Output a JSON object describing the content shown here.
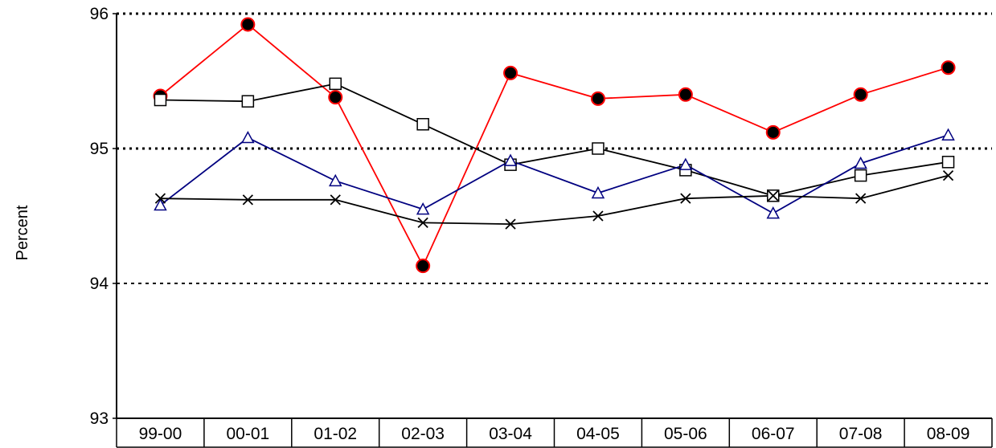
{
  "chart_data": {
    "type": "line",
    "ylabel": "Percent",
    "ylim": [
      93,
      96
    ],
    "yticks": [
      93,
      94,
      95,
      96
    ],
    "yticklabels": [
      "93",
      "94",
      "95",
      "96"
    ],
    "categories": [
      "99-00",
      "00-01",
      "01-02",
      "02-03",
      "03-04",
      "04-05",
      "05-06",
      "06-07",
      "07-08",
      "08-09"
    ],
    "grid": "horizontal dotted at 94, 95, 96",
    "legend": "none",
    "series": [
      {
        "color": "#ff0000",
        "marker": "filled-circle",
        "values": [
          95.39,
          95.92,
          95.38,
          94.13,
          95.56,
          95.37,
          95.4,
          95.12,
          95.4,
          95.6
        ]
      },
      {
        "color": "#000000",
        "marker": "square",
        "values": [
          95.36,
          95.35,
          95.48,
          95.18,
          94.88,
          95.0,
          94.84,
          94.65,
          94.8,
          94.9
        ]
      },
      {
        "color": "#000080",
        "marker": "triangle",
        "values": [
          94.58,
          95.08,
          94.76,
          94.55,
          94.91,
          94.67,
          94.88,
          94.52,
          94.89,
          95.1
        ]
      },
      {
        "color": "#000000",
        "marker": "x",
        "values": [
          94.63,
          94.62,
          94.62,
          94.45,
          94.44,
          94.5,
          94.63,
          94.65,
          94.63,
          94.8
        ]
      }
    ]
  }
}
